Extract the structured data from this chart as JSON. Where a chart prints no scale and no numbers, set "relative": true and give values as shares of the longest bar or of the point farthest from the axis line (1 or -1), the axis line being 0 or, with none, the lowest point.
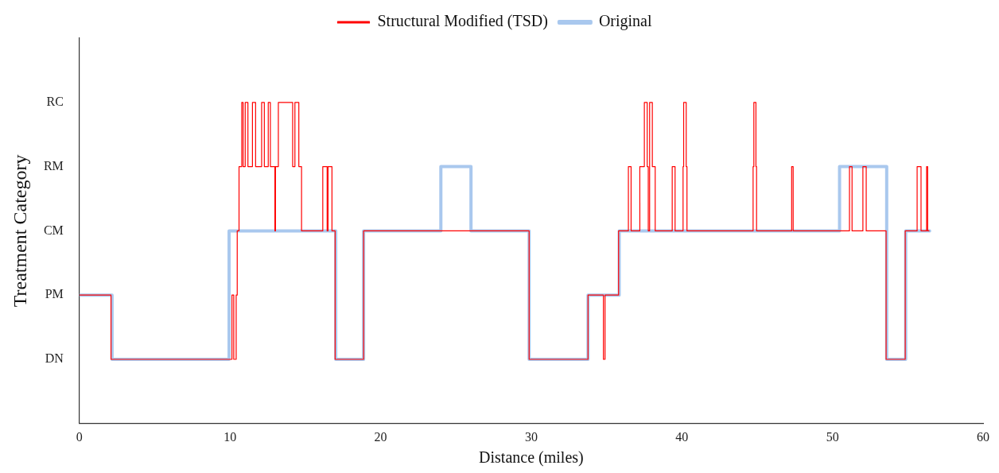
{
  "chart_data": {
    "type": "step",
    "xlabel": "Distance (miles)",
    "ylabel": "Treatment Category",
    "xlim": [
      0,
      60
    ],
    "xticks": [
      0,
      10,
      20,
      30,
      40,
      50,
      60
    ],
    "relative": true,
    "annotations": [
      "DN",
      "PM",
      "CM",
      "RM",
      "RC"
    ],
    "grid": false,
    "legend": "top",
    "marker": "none",
    "line_style": "solid",
    "series": [
      {
        "name": "Original",
        "color": "#a9c8ee",
        "x": [
          0,
          2.17,
          9.94,
          17.02,
          18.87,
          24.0,
          26.0,
          29.86,
          33.77,
          35.84,
          50.47,
          53.6,
          54.86,
          56.45
        ],
        "values": [
          0.4,
          0.2,
          0.6,
          0.2,
          0.6,
          0.8,
          0.6,
          0.2,
          0.4,
          0.6,
          0.8,
          0.2,
          0.6,
          0.6
        ]
      },
      {
        "name": "Structural Modified (TSD)",
        "color": "#ff0000",
        "x": [
          0,
          2.1,
          10.13,
          10.25,
          10.41,
          10.48,
          10.6,
          10.78,
          10.87,
          11.01,
          11.19,
          11.49,
          11.7,
          12.1,
          12.28,
          12.54,
          12.68,
          12.98,
          13.02,
          13.21,
          14.16,
          14.31,
          14.57,
          14.75,
          16.16,
          16.45,
          16.51,
          16.77,
          16.98,
          18.87,
          29.86,
          33.77,
          34.79,
          34.9,
          35.8,
          36.45,
          36.63,
          37.21,
          37.51,
          37.7,
          37.77,
          37.86,
          38.04,
          38.23,
          39.36,
          39.55,
          40.08,
          40.12,
          40.29,
          40.34,
          44.73,
          44.78,
          44.92,
          44.96,
          47.29,
          47.39,
          51.13,
          51.3,
          52.02,
          52.24,
          53.56,
          54.83,
          55.62,
          55.88,
          56.25,
          56.32,
          56.41
        ],
        "values": [
          0.4,
          0.2,
          0.4,
          0.2,
          0.4,
          0.6,
          0.8,
          1,
          0.8,
          1,
          0.8,
          1,
          0.8,
          1,
          0.8,
          1,
          0.8,
          0.6,
          0.8,
          1,
          0.8,
          1,
          0.8,
          0.6,
          0.8,
          0.6,
          0.8,
          0.6,
          0.2,
          0.6,
          0.2,
          0.4,
          0.2,
          0.4,
          0.6,
          0.8,
          0.6,
          0.8,
          1,
          0.8,
          0.6,
          1,
          0.8,
          0.6,
          0.8,
          0.6,
          0.8,
          1,
          0.8,
          0.6,
          0.8,
          1,
          0.8,
          0.6,
          0.8,
          0.6,
          0.8,
          0.6,
          0.8,
          0.6,
          0.2,
          0.6,
          0.8,
          0.6,
          0.8,
          0.6,
          0.6
        ]
      }
    ]
  }
}
